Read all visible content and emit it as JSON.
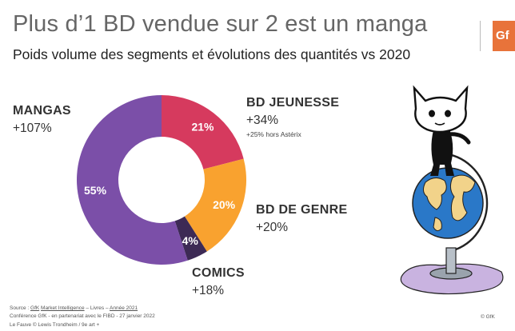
{
  "header": {
    "title": "Plus d’1 BD vendue sur 2 est un manga",
    "subtitle": "Poids volume des segments et évolutions des quantités vs 2020",
    "logo_text": "Gf"
  },
  "chart_data": {
    "type": "pie",
    "donut": true,
    "title": "Plus d’1 BD vendue sur 2 est un manga",
    "subtitle": "Poids volume des segments et évolutions des quantités vs 2020",
    "slices": [
      {
        "name": "BD JEUNESSE",
        "value": 21,
        "label": "21%",
        "change": "+34%",
        "note": "+25% hors Astérix",
        "color": "#d63a5e"
      },
      {
        "name": "BD DE GENRE",
        "value": 20,
        "label": "20%",
        "change": "+20%",
        "color": "#f9a22f"
      },
      {
        "name": "COMICS",
        "value": 4,
        "label": "4%",
        "change": "+18%",
        "color": "#3d2a55"
      },
      {
        "name": "MANGAS",
        "value": 55,
        "label": "55%",
        "change": "+107%",
        "color": "#7b4fa8"
      }
    ]
  },
  "footer": {
    "source_prefix": "Source : ",
    "source_gfk": "GfK",
    "source_mid": " ",
    "source_mi": "Market Intelligence",
    "source_rest": " – Livres – ",
    "source_year": "Année 2021",
    "conference": "Conférence GfK - en partenariat avec le FIBD - 27 janvier 2022",
    "credit": "Le Fauve © Lewis Trondheim / 9e art +",
    "copyright": "© GfK"
  },
  "illustration": {
    "name": "cat-on-globe-illustration"
  }
}
